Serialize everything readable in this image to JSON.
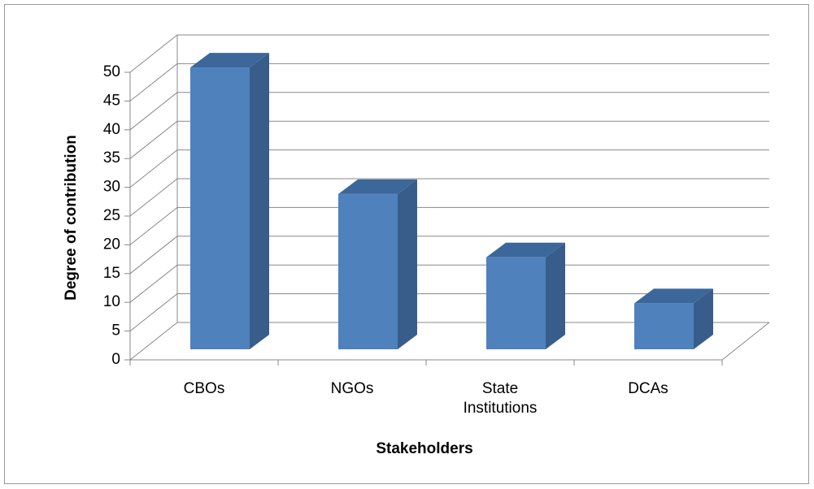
{
  "chart_data": {
    "type": "bar3d",
    "xlabel": "Stakeholders",
    "ylabel": "Degree of contribution",
    "categories": [
      "CBOs",
      "NGOs",
      "State Institutions",
      "DCAs"
    ],
    "values": [
      49,
      27,
      16,
      8
    ],
    "color": "#4f81bd",
    "ylim": [
      0,
      50
    ],
    "yticks": [
      0,
      5,
      10,
      15,
      20,
      25,
      30,
      35,
      40,
      45,
      50
    ],
    "grid": true
  }
}
